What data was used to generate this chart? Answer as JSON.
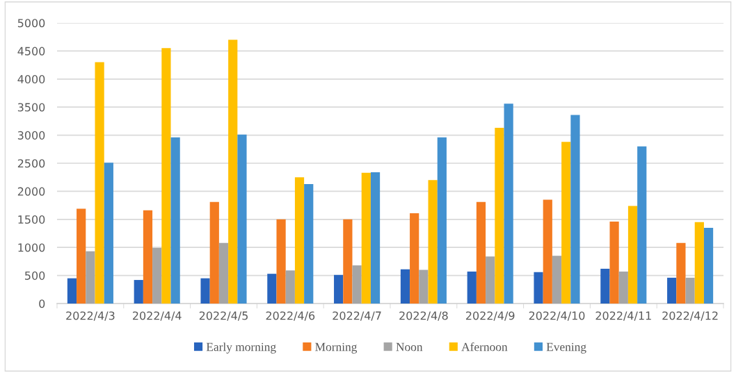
{
  "chart_data": {
    "type": "bar",
    "categories": [
      "2022/4/3",
      "2022/4/4",
      "2022/4/5",
      "2022/4/6",
      "2022/4/7",
      "2022/4/8",
      "2022/4/9",
      "2022/4/10",
      "2022/4/11",
      "2022/4/12"
    ],
    "series": [
      {
        "name": "Early morning",
        "color": "#2864be",
        "values": [
          450,
          420,
          450,
          530,
          510,
          610,
          570,
          560,
          620,
          460
        ]
      },
      {
        "name": "Morning",
        "color": "#f47b20",
        "values": [
          1690,
          1660,
          1810,
          1500,
          1500,
          1610,
          1810,
          1850,
          1460,
          1080
        ]
      },
      {
        "name": "Noon",
        "color": "#a5a5a5",
        "values": [
          930,
          990,
          1080,
          590,
          680,
          600,
          840,
          850,
          570,
          460
        ]
      },
      {
        "name": "Afernoon",
        "color": "#ffc000",
        "values": [
          4300,
          4550,
          4700,
          2250,
          2330,
          2200,
          3130,
          2880,
          1740,
          1450
        ]
      },
      {
        "name": "Evening",
        "color": "#4291d0",
        "values": [
          2510,
          2960,
          3010,
          2130,
          2340,
          2960,
          3560,
          3360,
          2800,
          1350
        ]
      }
    ],
    "ylim": [
      0,
      5000
    ],
    "yticks": [
      0,
      500,
      1000,
      1500,
      2000,
      2500,
      3000,
      3500,
      4000,
      4500,
      5000
    ],
    "grid": "y",
    "legend": "bottom"
  }
}
